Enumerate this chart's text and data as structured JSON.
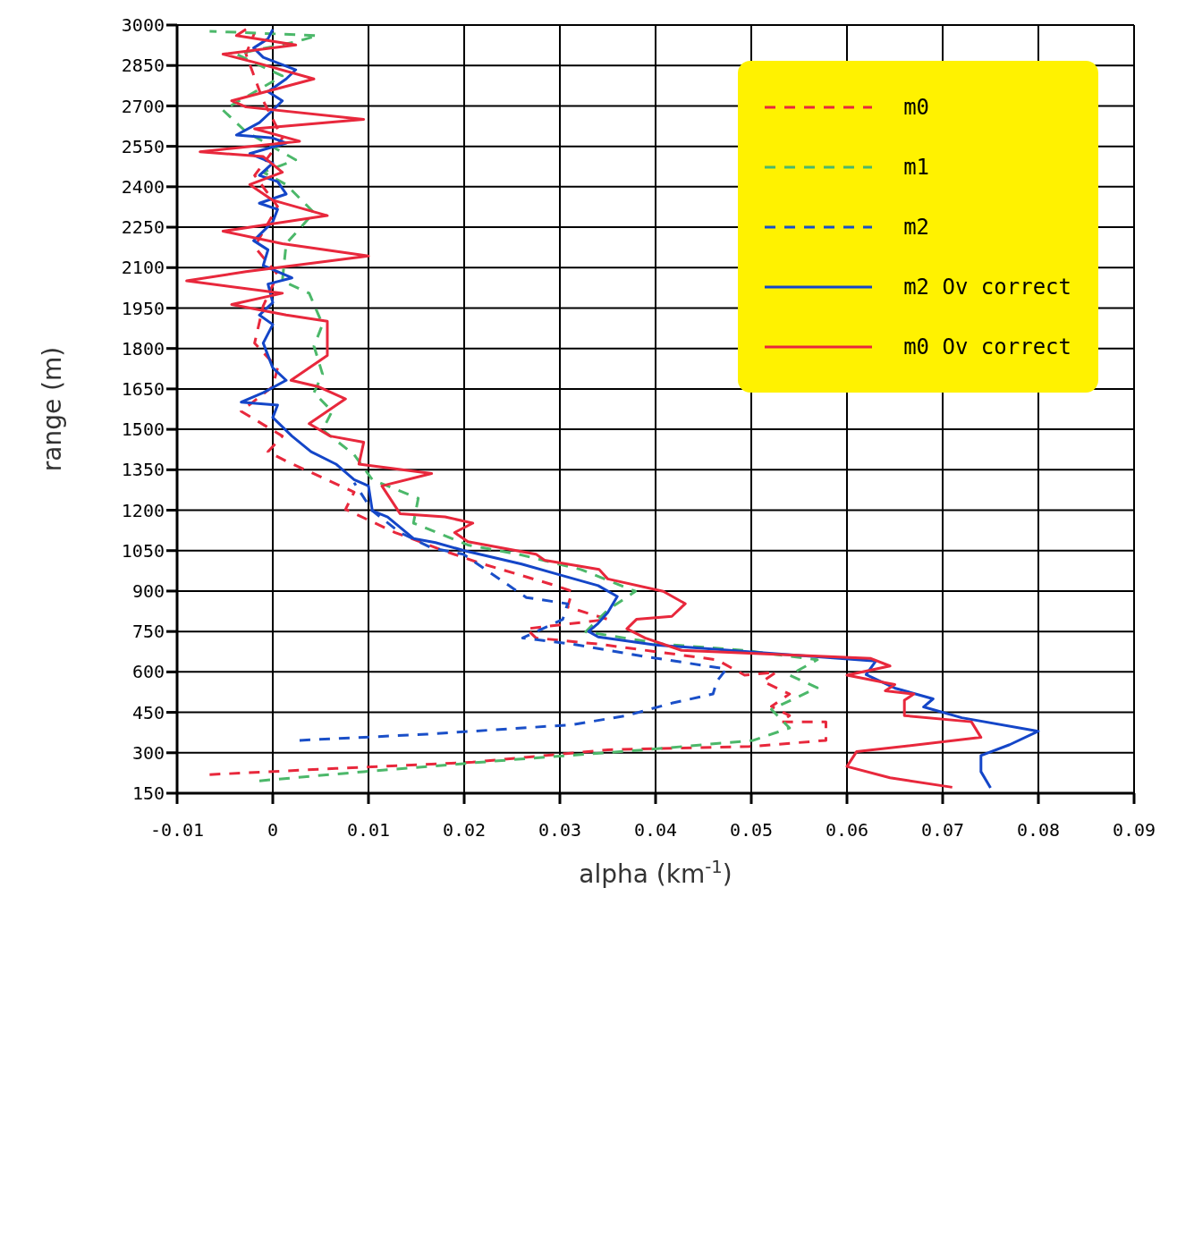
{
  "chart_data": {
    "type": "line",
    "xlabel": "alpha (km$^{-1}$)",
    "ylabel": "range (m)",
    "xlim": [
      -0.01,
      0.09
    ],
    "xticks": [
      -0.01,
      0,
      0.01,
      0.02,
      0.03,
      0.04,
      0.05,
      0.06,
      0.07,
      0.08,
      0.09
    ],
    "ylim": [
      150,
      3000
    ],
    "yticks": [
      150,
      300,
      450,
      600,
      750,
      900,
      1050,
      1200,
      1350,
      1500,
      1650,
      1800,
      1950,
      2100,
      2250,
      2400,
      2550,
      2700,
      2850,
      3000
    ],
    "grid": true,
    "legend": "top right",
    "marker": "none",
    "series": [
      {
        "name": "m0",
        "color": "#e8283c",
        "line_style": "dashed",
        "x": [
          -0.0066,
          0.0066,
          0.0209,
          0.035,
          0.0498,
          0.0578,
          0.0578,
          0.0531,
          0.054,
          0.0521,
          0.054,
          0.0512,
          0.0526,
          0.0493,
          0.0464,
          0.0341,
          0.0275,
          0.0265,
          0.035,
          0.0308,
          0.0313,
          0.0294,
          0.0218,
          0.018,
          0.0128,
          0.0076,
          0.0085,
          0.0014,
          -0.0005,
          0.001,
          -0.0033,
          0,
          0.0005,
          -0.0019,
          -0.001,
          0.0005,
          -0.0019,
          0.0005,
          -0.0019,
          0.001,
          -0.001,
          -0.0028,
          -0.0019
        ],
        "values": [
          219,
          242,
          265,
          311,
          323,
          346,
          415,
          415,
          438,
          472,
          518,
          565,
          599,
          588,
          645,
          703,
          726,
          760,
          795,
          841,
          899,
          922,
          1002,
          1048,
          1117,
          1203,
          1267,
          1382,
          1417,
          1475,
          1567,
          1659,
          1728,
          1820,
          1958,
          2074,
          2177,
          2327,
          2442,
          2581,
          2719,
          2892,
          2972
        ]
      },
      {
        "name": "m1",
        "color": "#4cb86a",
        "line_style": "dashed",
        "x": [
          -0.0014,
          0.0095,
          0.0256,
          0.0389,
          0.0502,
          0.054,
          0.0521,
          0.0569,
          0.054,
          0.0569,
          0.0493,
          0.0408,
          0.0327,
          0.035,
          0.0379,
          0.0322,
          0.0256,
          0.0204,
          0.0147,
          0.0152,
          0.0104,
          0.0085,
          0.0052,
          0.0062,
          0.0043,
          0.0052,
          0.0043,
          0.0052,
          0.0038,
          0.001,
          0.0014,
          0.0043,
          0.0014,
          -0.001,
          0.0024,
          -0.0028,
          -0.0052,
          0.001,
          -0.0038,
          0.0024,
          0.0047,
          -0.0066
        ],
        "values": [
          196,
          230,
          276,
          311,
          346,
          392,
          461,
          541,
          588,
          645,
          680,
          703,
          749,
          830,
          899,
          980,
          1037,
          1071,
          1152,
          1244,
          1313,
          1406,
          1498,
          1567,
          1636,
          1705,
          1809,
          1889,
          2005,
          2051,
          2189,
          2304,
          2408,
          2454,
          2500,
          2604,
          2684,
          2811,
          2892,
          2938,
          2961,
          2977
        ]
      },
      {
        "name": "m2",
        "color": "#1a4fc8",
        "line_style": "dashed",
        "x": [
          0.0028,
          0.0161,
          0.0313,
          0.037,
          0.0417,
          0.046,
          0.0464,
          0.0474,
          0.0389,
          0.0313,
          0.0261,
          0.0303,
          0.0308,
          0.0265,
          0.0199,
          0.0166,
          0.0133,
          0.0104,
          0.0085
        ],
        "values": [
          346,
          369,
          404,
          438,
          484,
          518,
          565,
          611,
          657,
          703,
          726,
          795,
          853,
          876,
          1037,
          1060,
          1117,
          1198,
          1302
        ]
      },
      {
        "name": "m2 Ov correct",
        "color": "#1446c8",
        "line_style": "solid",
        "x": [
          0.075,
          0.074,
          0.074,
          0.077,
          0.08,
          0.072,
          0.068,
          0.069,
          0.065,
          0.062,
          0.063,
          0.04,
          0.034,
          0.033,
          0.034,
          0.035,
          0.036,
          0.034,
          0.03,
          0.026,
          0.02,
          0.017,
          0.0147,
          0.012,
          0.0104,
          0.01,
          0.0085,
          0.0066,
          0.004,
          0.002,
          0,
          0.0005,
          -0.0033,
          -0.001,
          0.0014,
          0,
          -0.001,
          0,
          -0.0014,
          0,
          -0.0005,
          0.002,
          -0.001,
          -0.0005,
          -0.002,
          0,
          0.0005,
          -0.0014,
          0.0014,
          0.0005,
          -0.0014,
          0,
          -0.0024,
          0.0014,
          0,
          -0.0038,
          -0.0014,
          0,
          0.001,
          -0.0005,
          0.0014,
          0.0024,
          -0.001,
          -0.002,
          -0.0005,
          0
        ],
        "values": [
          170,
          230,
          290,
          330,
          380,
          430,
          470,
          500,
          540,
          590,
          640,
          700,
          730,
          750,
          780,
          820,
          880,
          920,
          960,
          1000,
          1050,
          1080,
          1095,
          1175,
          1198,
          1290,
          1313,
          1371,
          1417,
          1475,
          1544,
          1590,
          1601,
          1636,
          1682,
          1728,
          1820,
          1889,
          1924,
          1970,
          2039,
          2062,
          2108,
          2166,
          2200,
          2270,
          2316,
          2339,
          2373,
          2419,
          2442,
          2488,
          2523,
          2562,
          2581,
          2592,
          2638,
          2684,
          2719,
          2753,
          2800,
          2834,
          2880,
          2915,
          2949,
          2984
        ]
      },
      {
        "name": "m0 Ov correct",
        "color": "#e8283c",
        "line_style": "solid",
        "x": [
          0.071,
          0.0645,
          0.06,
          0.061,
          0.074,
          0.073,
          0.066,
          0.066,
          0.067,
          0.064,
          0.065,
          0.06,
          0.0645,
          0.0625,
          0.0427,
          0.0389,
          0.037,
          0.038,
          0.0417,
          0.0431,
          0.0408,
          0.035,
          0.0341,
          0.0284,
          0.0275,
          0.0204,
          0.019,
          0.0209,
          0.018,
          0.0133,
          0.0114,
          0.0166,
          0.009,
          0.0095,
          0.006,
          0.0038,
          0.0076,
          0.0047,
          0.0019,
          0.0057,
          0.0057,
          0.0014,
          -0.0043,
          0.001,
          -0.009,
          -0.0028,
          0.01,
          0.001,
          -0.0052,
          0.0057,
          0,
          -0.0024,
          0.001,
          -0.001,
          -0.0076,
          0.0028,
          -0.0019,
          0.0095,
          -0.0028,
          -0.0043,
          0.0043,
          -0.0014,
          -0.0052,
          0.0024,
          -0.0038,
          -0.0028
        ],
        "values": [
          172,
          207,
          249,
          304,
          357,
          415,
          438,
          495,
          518,
          530,
          553,
          588,
          622,
          650,
          680,
          726,
          760,
          795,
          806,
          853,
          899,
          945,
          980,
          1014,
          1037,
          1083,
          1117,
          1152,
          1175,
          1187,
          1290,
          1336,
          1371,
          1452,
          1475,
          1521,
          1613,
          1659,
          1682,
          1774,
          1901,
          1924,
          1963,
          2005,
          2051,
          2085,
          2143,
          2189,
          2235,
          2293,
          2350,
          2408,
          2454,
          2512,
          2530,
          2569,
          2615,
          2650,
          2696,
          2719,
          2800,
          2857,
          2892,
          2926,
          2961,
          2984
        ]
      }
    ]
  }
}
